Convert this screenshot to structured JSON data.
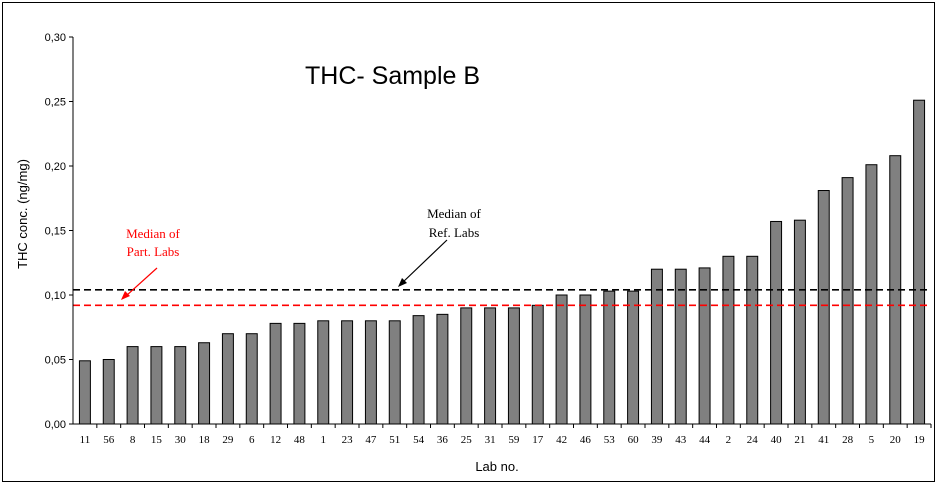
{
  "chart_data": {
    "type": "bar",
    "title": "THC- Sample B",
    "xlabel": "Lab no.",
    "ylabel": "THC conc. (ng/mg)",
    "ylim": [
      0,
      0.3
    ],
    "yticks": [
      "0,00",
      "0,05",
      "0,10",
      "0,15",
      "0,20",
      "0,25",
      "0,30"
    ],
    "grid": false,
    "categories": [
      "11",
      "56",
      "8",
      "15",
      "30",
      "18",
      "29",
      "6",
      "12",
      "48",
      "1",
      "23",
      "47",
      "51",
      "54",
      "36",
      "25",
      "31",
      "59",
      "17",
      "42",
      "46",
      "53",
      "60",
      "39",
      "43",
      "44",
      "2",
      "24",
      "40",
      "21",
      "41",
      "28",
      "5",
      "20",
      "19"
    ],
    "series": [
      {
        "values": [
          0.049,
          0.05,
          0.06,
          0.06,
          0.06,
          0.063,
          0.07,
          0.07,
          0.078,
          0.078,
          0.08,
          0.08,
          0.08,
          0.08,
          0.084,
          0.085,
          0.09,
          0.09,
          0.09,
          0.092,
          0.1,
          0.1,
          0.103,
          0.103,
          0.12,
          0.12,
          0.121,
          0.13,
          0.13,
          0.157,
          0.158,
          0.181,
          0.191,
          0.201,
          0.208,
          0.251
        ],
        "color": "#808080"
      }
    ],
    "reference_lines": [
      {
        "label_line1": "Median of",
        "label_line2": "Ref. Labs",
        "value": 0.104,
        "color": "#000000",
        "style": "dashed"
      },
      {
        "label_line1": "Median of",
        "label_line2": "Part. Labs",
        "value": 0.092,
        "color": "#ff0000",
        "style": "dashed"
      }
    ]
  }
}
